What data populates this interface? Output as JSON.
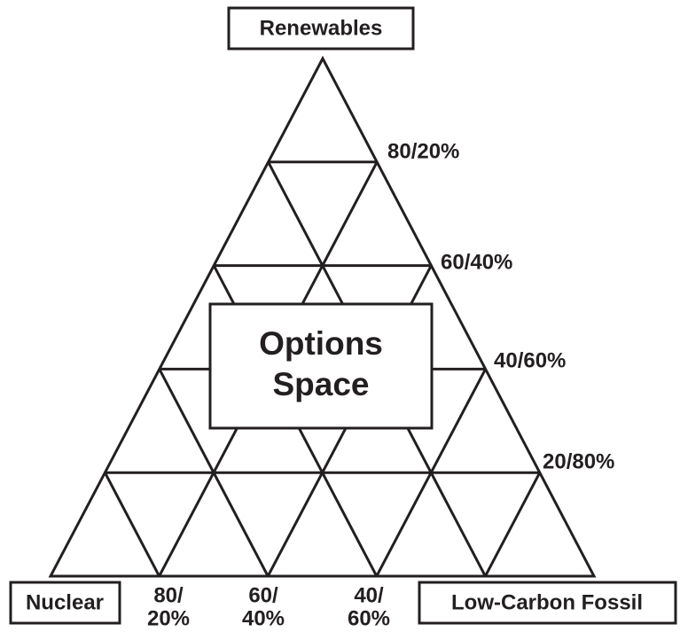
{
  "apex_label": "Renewables",
  "corner_labels": {
    "left": "Nuclear",
    "right": "Low-Carbon Fossil"
  },
  "center_box": {
    "lines": [
      "Options",
      "Space"
    ]
  },
  "side_labels": [
    "80/20%",
    "60/40%",
    "40/60%",
    "20/80%"
  ],
  "base_labels": [
    [
      "80/",
      "20%"
    ],
    [
      "60/",
      "40%"
    ],
    [
      "40/",
      "60%"
    ]
  ]
}
